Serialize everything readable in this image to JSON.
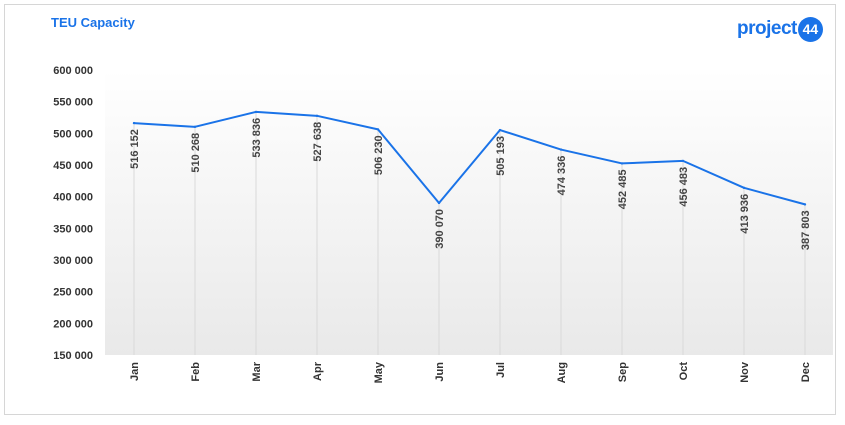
{
  "header": {
    "title": "TEU Capacity",
    "logo_text": "project",
    "logo_badge": "44"
  },
  "colors": {
    "accent": "#1a73e8",
    "line": "#1a73e8",
    "drop_line": "#d9d9d9"
  },
  "chart_data": {
    "type": "line",
    "title": "TEU Capacity",
    "xlabel": "",
    "ylabel": "",
    "categories": [
      "Jan",
      "Feb",
      "Mar",
      "Apr",
      "May",
      "Jun",
      "Jul",
      "Aug",
      "Sep",
      "Oct",
      "Nov",
      "Dec"
    ],
    "values": [
      516152,
      510268,
      533836,
      527638,
      506230,
      390070,
      505193,
      474336,
      452485,
      456483,
      413936,
      387803
    ],
    "value_labels": [
      "516 152",
      "510 268",
      "533 836",
      "527 638",
      "506 230",
      "390 070",
      "505 193",
      "474 336",
      "452 485",
      "456 483",
      "413 936",
      "387 803"
    ],
    "yticks": [
      "150 000",
      "200 000",
      "250 000",
      "300 000",
      "350 000",
      "400 000",
      "450 000",
      "500 000",
      "550 000",
      "600 000"
    ],
    "ytick_values": [
      150000,
      200000,
      250000,
      300000,
      350000,
      400000,
      450000,
      500000,
      550000,
      600000
    ],
    "ylim": [
      150000,
      600000
    ],
    "grid": false,
    "legend": "none"
  }
}
